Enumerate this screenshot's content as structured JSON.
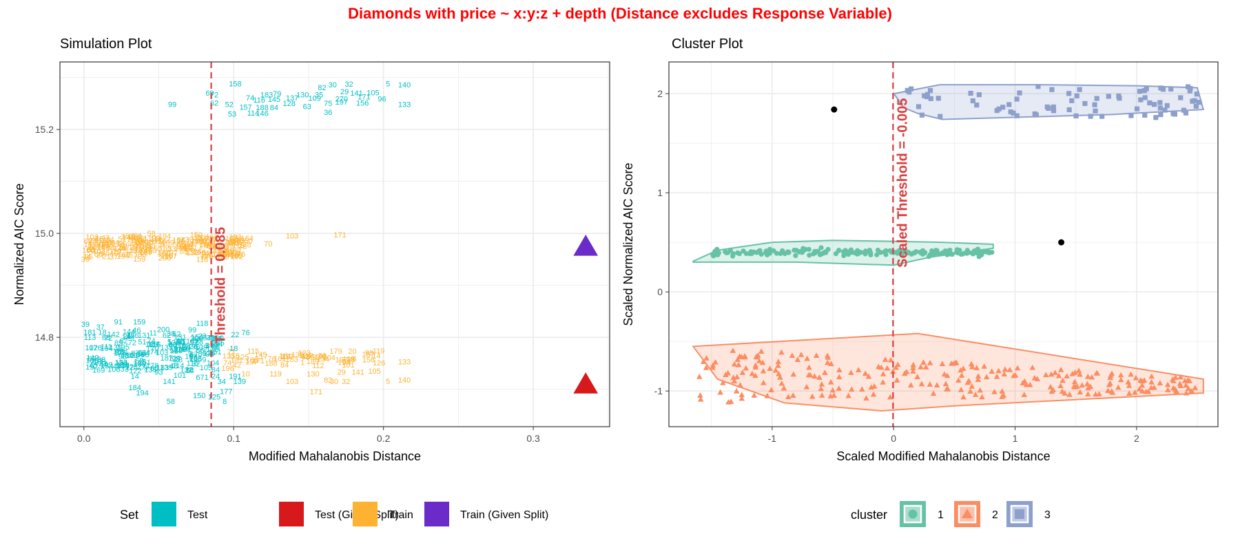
{
  "page": {
    "title": "Diamonds with price ~ x:y:z + depth (Distance excludes Response Variable)",
    "title_color": "#ff0000"
  },
  "colors": {
    "test": "#00BFC4",
    "test_given": "#D7191C",
    "train": "#FDB232",
    "train_given": "#6A2BC8",
    "cluster1": "#66C2A5",
    "cluster2": "#FC8D62",
    "cluster3": "#8DA0CB",
    "threshold": "#D94040"
  },
  "chart_data": [
    {
      "type": "scatter",
      "title": "Simulation Plot",
      "xlabel": "Modified Mahalanobis Distance",
      "ylabel": "Normalized AIC Score",
      "xlim": [
        -0.016,
        0.351
      ],
      "ylim": [
        14.628,
        15.33
      ],
      "xticks": [
        0.0,
        0.1,
        0.2,
        0.3
      ],
      "xtick_labels": [
        "0.0",
        "0.1",
        "0.2",
        "0.3"
      ],
      "yticks": [
        14.8,
        15.0,
        15.2
      ],
      "ytick_labels": [
        "14.8",
        "15.0",
        "15.2"
      ],
      "grid": true,
      "threshold": {
        "x": 0.085,
        "label": "Threshold = 0.085"
      },
      "legend": {
        "title": "Set",
        "position": "bottom",
        "items": [
          {
            "label": "Test",
            "color": "#00BFC4"
          },
          {
            "label": "Test (Given Split)",
            "color": "#D7191C"
          },
          {
            "label": "Train",
            "color": "#FDB232"
          },
          {
            "label": "Train (Given Split)",
            "color": "#6A2BC8"
          }
        ]
      },
      "given_split_points": [
        {
          "x": 0.335,
          "y": 14.975,
          "label": "Train (Given Split)"
        },
        {
          "x": 0.335,
          "y": 14.71,
          "label": "Test (Given Split)"
        }
      ],
      "labeled_points": [
        {
          "set": "Test",
          "x": 0.101,
          "y": 15.283,
          "label": "158"
        },
        {
          "set": "Test",
          "x": 0.084,
          "y": 15.265,
          "label": "69"
        },
        {
          "set": "Test",
          "x": 0.087,
          "y": 15.262,
          "label": "72"
        },
        {
          "set": "Test",
          "x": 0.122,
          "y": 15.262,
          "label": "183"
        },
        {
          "set": "Test",
          "x": 0.129,
          "y": 15.264,
          "label": "79"
        },
        {
          "set": "Test",
          "x": 0.159,
          "y": 15.276,
          "label": "82"
        },
        {
          "set": "Test",
          "x": 0.166,
          "y": 15.281,
          "label": "30"
        },
        {
          "set": "Test",
          "x": 0.177,
          "y": 15.282,
          "label": "32"
        },
        {
          "set": "Test",
          "x": 0.203,
          "y": 15.283,
          "label": "5"
        },
        {
          "set": "Test",
          "x": 0.214,
          "y": 15.281,
          "label": "140"
        },
        {
          "set": "Test",
          "x": 0.174,
          "y": 15.268,
          "label": "29"
        },
        {
          "set": "Test",
          "x": 0.182,
          "y": 15.265,
          "label": "141"
        },
        {
          "set": "Test",
          "x": 0.193,
          "y": 15.266,
          "label": "105"
        },
        {
          "set": "Test",
          "x": 0.146,
          "y": 15.262,
          "label": "130"
        },
        {
          "set": "Test",
          "x": 0.157,
          "y": 15.262,
          "label": "35"
        },
        {
          "set": "Test",
          "x": 0.111,
          "y": 15.256,
          "label": "74"
        },
        {
          "set": "Test",
          "x": 0.117,
          "y": 15.252,
          "label": "116"
        },
        {
          "set": "Test",
          "x": 0.127,
          "y": 15.253,
          "label": "145"
        },
        {
          "set": "Test",
          "x": 0.139,
          "y": 15.256,
          "label": "137"
        },
        {
          "set": "Test",
          "x": 0.154,
          "y": 15.255,
          "label": "109"
        },
        {
          "set": "Test",
          "x": 0.172,
          "y": 15.254,
          "label": "270"
        },
        {
          "set": "Test",
          "x": 0.187,
          "y": 15.258,
          "label": "171"
        },
        {
          "set": "Test",
          "x": 0.199,
          "y": 15.254,
          "label": "96"
        },
        {
          "set": "Test",
          "x": 0.172,
          "y": 15.248,
          "label": "197"
        },
        {
          "set": "Test",
          "x": 0.186,
          "y": 15.246,
          "label": "156"
        },
        {
          "set": "Test",
          "x": 0.214,
          "y": 15.243,
          "label": "133"
        },
        {
          "set": "Test",
          "x": 0.059,
          "y": 15.243,
          "label": "99"
        },
        {
          "set": "Test",
          "x": 0.087,
          "y": 15.246,
          "label": "62"
        },
        {
          "set": "Test",
          "x": 0.097,
          "y": 15.243,
          "label": "52"
        },
        {
          "set": "Test",
          "x": 0.108,
          "y": 15.238,
          "label": "157"
        },
        {
          "set": "Test",
          "x": 0.119,
          "y": 15.237,
          "label": "188"
        },
        {
          "set": "Test",
          "x": 0.127,
          "y": 15.237,
          "label": "84"
        },
        {
          "set": "Test",
          "x": 0.137,
          "y": 15.245,
          "label": "128"
        },
        {
          "set": "Test",
          "x": 0.149,
          "y": 15.239,
          "label": "63"
        },
        {
          "set": "Test",
          "x": 0.163,
          "y": 15.245,
          "label": "75"
        },
        {
          "set": "Test",
          "x": 0.163,
          "y": 15.228,
          "label": "36"
        },
        {
          "set": "Test",
          "x": 0.099,
          "y": 15.225,
          "label": "53"
        },
        {
          "set": "Test",
          "x": 0.113,
          "y": 15.227,
          "label": "114"
        },
        {
          "set": "Test",
          "x": 0.119,
          "y": 15.226,
          "label": "146"
        },
        {
          "set": "Train",
          "x": 0.045,
          "y": 14.995,
          "label": "58"
        },
        {
          "set": "Train",
          "x": 0.075,
          "y": 14.992,
          "label": "150"
        },
        {
          "set": "Train",
          "x": 0.139,
          "y": 14.99,
          "label": "103"
        },
        {
          "set": "Train",
          "x": 0.171,
          "y": 14.992,
          "label": "171"
        },
        {
          "set": "Train",
          "x": 0.036,
          "y": 14.99,
          "label": "94"
        },
        {
          "set": "Train",
          "x": 0.101,
          "y": 14.978,
          "label": "310"
        },
        {
          "set": "Train",
          "x": 0.123,
          "y": 14.975,
          "label": "70"
        },
        {
          "set": "Train",
          "x": 0.013,
          "y": 14.968,
          "label": "108"
        },
        {
          "set": "Train",
          "x": 0.097,
          "y": 14.955,
          "label": "22"
        },
        {
          "set": "Train",
          "x": 0.105,
          "y": 14.955,
          "label": "76"
        },
        {
          "set": "Train",
          "x": 0.001,
          "y": 14.945,
          "label": "39"
        },
        {
          "set": "Train",
          "x": 0.02,
          "y": 14.95,
          "label": "37"
        },
        {
          "set": "Train",
          "x": 0.037,
          "y": 14.946,
          "label": "159"
        },
        {
          "set": "Train",
          "x": 0.054,
          "y": 14.948,
          "label": "200"
        },
        {
          "set": "Train",
          "x": 0.079,
          "y": 14.945,
          "label": "118"
        },
        {
          "set": "Test",
          "x": 0.023,
          "y": 14.825,
          "label": "91"
        },
        {
          "set": "Test",
          "x": 0.037,
          "y": 14.825,
          "label": "159"
        },
        {
          "set": "Test",
          "x": 0.001,
          "y": 14.82,
          "label": "39"
        },
        {
          "set": "Test",
          "x": 0.011,
          "y": 14.815,
          "label": "37"
        },
        {
          "set": "Test",
          "x": 0.053,
          "y": 14.81,
          "label": "200"
        },
        {
          "set": "Test",
          "x": 0.079,
          "y": 14.822,
          "label": "118"
        },
        {
          "set": "Test",
          "x": 0.004,
          "y": 14.805,
          "label": "181"
        },
        {
          "set": "Test",
          "x": 0.101,
          "y": 14.8,
          "label": "22"
        },
        {
          "set": "Test",
          "x": 0.108,
          "y": 14.804,
          "label": "76"
        },
        {
          "set": "Test",
          "x": 0.004,
          "y": 14.795,
          "label": "113"
        },
        {
          "set": "Test",
          "x": 0.005,
          "y": 14.775,
          "label": "102"
        },
        {
          "set": "Test",
          "x": 0.04,
          "y": 14.765,
          "label": "184"
        },
        {
          "set": "Test",
          "x": 0.068,
          "y": 14.775,
          "label": "86"
        },
        {
          "set": "Test",
          "x": 0.088,
          "y": 14.777,
          "label": "86"
        },
        {
          "set": "Test",
          "x": 0.1,
          "y": 14.774,
          "label": "18"
        },
        {
          "set": "Test",
          "x": 0.06,
          "y": 14.74,
          "label": "48"
        },
        {
          "set": "Test",
          "x": 0.02,
          "y": 14.733,
          "label": "106"
        },
        {
          "set": "Test",
          "x": 0.034,
          "y": 14.72,
          "label": "14"
        },
        {
          "set": "Test",
          "x": 0.05,
          "y": 14.728,
          "label": "93"
        },
        {
          "set": "Test",
          "x": 0.064,
          "y": 14.722,
          "label": "101"
        },
        {
          "set": "Test",
          "x": 0.079,
          "y": 14.718,
          "label": "671"
        },
        {
          "set": "Test",
          "x": 0.088,
          "y": 14.72,
          "label": "24"
        },
        {
          "set": "Test",
          "x": 0.092,
          "y": 14.71,
          "label": "34"
        },
        {
          "set": "Test",
          "x": 0.101,
          "y": 14.72,
          "label": "191"
        },
        {
          "set": "Test",
          "x": 0.104,
          "y": 14.71,
          "label": "139"
        },
        {
          "set": "Test",
          "x": 0.057,
          "y": 14.71,
          "label": "141"
        },
        {
          "set": "Test",
          "x": 0.034,
          "y": 14.698,
          "label": "184"
        },
        {
          "set": "Test",
          "x": 0.039,
          "y": 14.688,
          "label": "194"
        },
        {
          "set": "Test",
          "x": 0.077,
          "y": 14.683,
          "label": "150"
        },
        {
          "set": "Test",
          "x": 0.087,
          "y": 14.68,
          "label": "125"
        },
        {
          "set": "Test",
          "x": 0.095,
          "y": 14.691,
          "label": "177"
        },
        {
          "set": "Test",
          "x": 0.058,
          "y": 14.672,
          "label": "58"
        },
        {
          "set": "Test",
          "x": 0.094,
          "y": 14.672,
          "label": "8"
        },
        {
          "set": "Train",
          "x": 0.1,
          "y": 14.76,
          "label": "116"
        },
        {
          "set": "Train",
          "x": 0.118,
          "y": 14.762,
          "label": "145"
        },
        {
          "set": "Train",
          "x": 0.136,
          "y": 14.758,
          "label": "137"
        },
        {
          "set": "Train",
          "x": 0.148,
          "y": 14.757,
          "label": "63"
        },
        {
          "set": "Train",
          "x": 0.159,
          "y": 14.76,
          "label": "36"
        },
        {
          "set": "Train",
          "x": 0.172,
          "y": 14.752,
          "label": "197"
        },
        {
          "set": "Train",
          "x": 0.19,
          "y": 14.752,
          "label": "156"
        },
        {
          "set": "Train",
          "x": 0.214,
          "y": 14.748,
          "label": "133"
        },
        {
          "set": "Train",
          "x": 0.112,
          "y": 14.748,
          "label": "157"
        },
        {
          "set": "Train",
          "x": 0.125,
          "y": 14.745,
          "label": "188"
        },
        {
          "set": "Train",
          "x": 0.134,
          "y": 14.742,
          "label": "84"
        },
        {
          "set": "Train",
          "x": 0.096,
          "y": 14.735,
          "label": "196"
        },
        {
          "set": "Train",
          "x": 0.108,
          "y": 14.725,
          "label": "10"
        },
        {
          "set": "Train",
          "x": 0.128,
          "y": 14.725,
          "label": "119"
        },
        {
          "set": "Train",
          "x": 0.153,
          "y": 14.725,
          "label": "130"
        },
        {
          "set": "Train",
          "x": 0.172,
          "y": 14.728,
          "label": "29"
        },
        {
          "set": "Train",
          "x": 0.183,
          "y": 14.728,
          "label": "141"
        },
        {
          "set": "Train",
          "x": 0.194,
          "y": 14.73,
          "label": "105"
        },
        {
          "set": "Train",
          "x": 0.163,
          "y": 14.713,
          "label": "82"
        },
        {
          "set": "Train",
          "x": 0.167,
          "y": 14.71,
          "label": "30"
        },
        {
          "set": "Train",
          "x": 0.175,
          "y": 14.71,
          "label": "32"
        },
        {
          "set": "Train",
          "x": 0.203,
          "y": 14.71,
          "label": "5"
        },
        {
          "set": "Train",
          "x": 0.214,
          "y": 14.713,
          "label": "140"
        },
        {
          "set": "Train",
          "x": 0.139,
          "y": 14.71,
          "label": "103"
        },
        {
          "set": "Train",
          "x": 0.155,
          "y": 14.69,
          "label": "171"
        }
      ],
      "clusters": [
        {
          "set": "Test",
          "x_range": [
            0.005,
            0.09
          ],
          "y_range": [
            14.73,
            14.81
          ],
          "count": 140
        },
        {
          "set": "Train",
          "x_range": [
            0.002,
            0.11
          ],
          "y_range": [
            14.95,
            14.99
          ],
          "count": 160
        },
        {
          "set": "Train",
          "x_range": [
            0.09,
            0.2
          ],
          "y_range": [
            14.74,
            14.77
          ],
          "count": 40
        }
      ]
    },
    {
      "type": "scatter",
      "title": "Cluster Plot",
      "xlabel": "Scaled Modified Mahalanobis Distance",
      "ylabel": "Scaled Normalized AIC Score",
      "xlim": [
        -1.85,
        2.67
      ],
      "ylim": [
        -1.36,
        2.32
      ],
      "xticks": [
        -1,
        0,
        1,
        2
      ],
      "xtick_labels": [
        "-1",
        "0",
        "1",
        "2"
      ],
      "yticks": [
        -1,
        0,
        1,
        2
      ],
      "ytick_labels": [
        "-1",
        "0",
        "1",
        "2"
      ],
      "grid": true,
      "threshold": {
        "x": -0.005,
        "label": "Scaled Threshold = -0.005"
      },
      "legend": {
        "title": "cluster",
        "position": "bottom",
        "items": [
          {
            "label": "1",
            "color": "#66C2A5",
            "shape": "circle"
          },
          {
            "label": "2",
            "color": "#FC8D62",
            "shape": "triangle"
          },
          {
            "label": "3",
            "color": "#8DA0CB",
            "shape": "square"
          }
        ]
      },
      "hulls": [
        {
          "cluster": "1",
          "points": [
            [
              -1.65,
              0.31
            ],
            [
              -1.45,
              0.42
            ],
            [
              -1.0,
              0.5
            ],
            [
              -0.5,
              0.52
            ],
            [
              0.0,
              0.51
            ],
            [
              0.4,
              0.5
            ],
            [
              0.82,
              0.48
            ],
            [
              0.82,
              0.44
            ],
            [
              0.3,
              0.35
            ],
            [
              0.0,
              0.27
            ],
            [
              -0.8,
              0.3
            ],
            [
              -1.65,
              0.3
            ]
          ]
        },
        {
          "cluster": "2",
          "points": [
            [
              -1.65,
              -0.55
            ],
            [
              0.2,
              -0.42
            ],
            [
              2.55,
              -0.88
            ],
            [
              2.55,
              -1.02
            ],
            [
              0.5,
              -1.15
            ],
            [
              -0.1,
              -1.2
            ],
            [
              -0.9,
              -1.12
            ],
            [
              -1.45,
              -0.88
            ]
          ]
        },
        {
          "cluster": "3",
          "points": [
            [
              0.0,
              2.0
            ],
            [
              0.38,
              2.09
            ],
            [
              1.2,
              2.09
            ],
            [
              2.0,
              2.08
            ],
            [
              2.5,
              2.06
            ],
            [
              2.55,
              1.84
            ],
            [
              1.8,
              1.79
            ],
            [
              0.4,
              1.74
            ],
            [
              0.2,
              1.8
            ],
            [
              0.08,
              1.86
            ],
            [
              0.02,
              1.97
            ]
          ]
        }
      ],
      "clusters": [
        {
          "cluster": "1",
          "shape": "circle",
          "x_range": [
            -1.5,
            0.82
          ],
          "y_range": [
            0.3,
            0.5
          ],
          "count": 180
        },
        {
          "cluster": "2",
          "shape": "triangle",
          "x_range": [
            -1.6,
            2.5
          ],
          "y_range": [
            -1.17,
            -0.48
          ],
          "count": 260
        },
        {
          "cluster": "3",
          "shape": "square",
          "x_range": [
            0.05,
            2.55
          ],
          "y_range": [
            1.74,
            2.08
          ],
          "count": 80
        }
      ],
      "outliers": [
        {
          "x": -0.49,
          "y": 1.84
        },
        {
          "x": 1.38,
          "y": 0.5
        }
      ]
    }
  ]
}
